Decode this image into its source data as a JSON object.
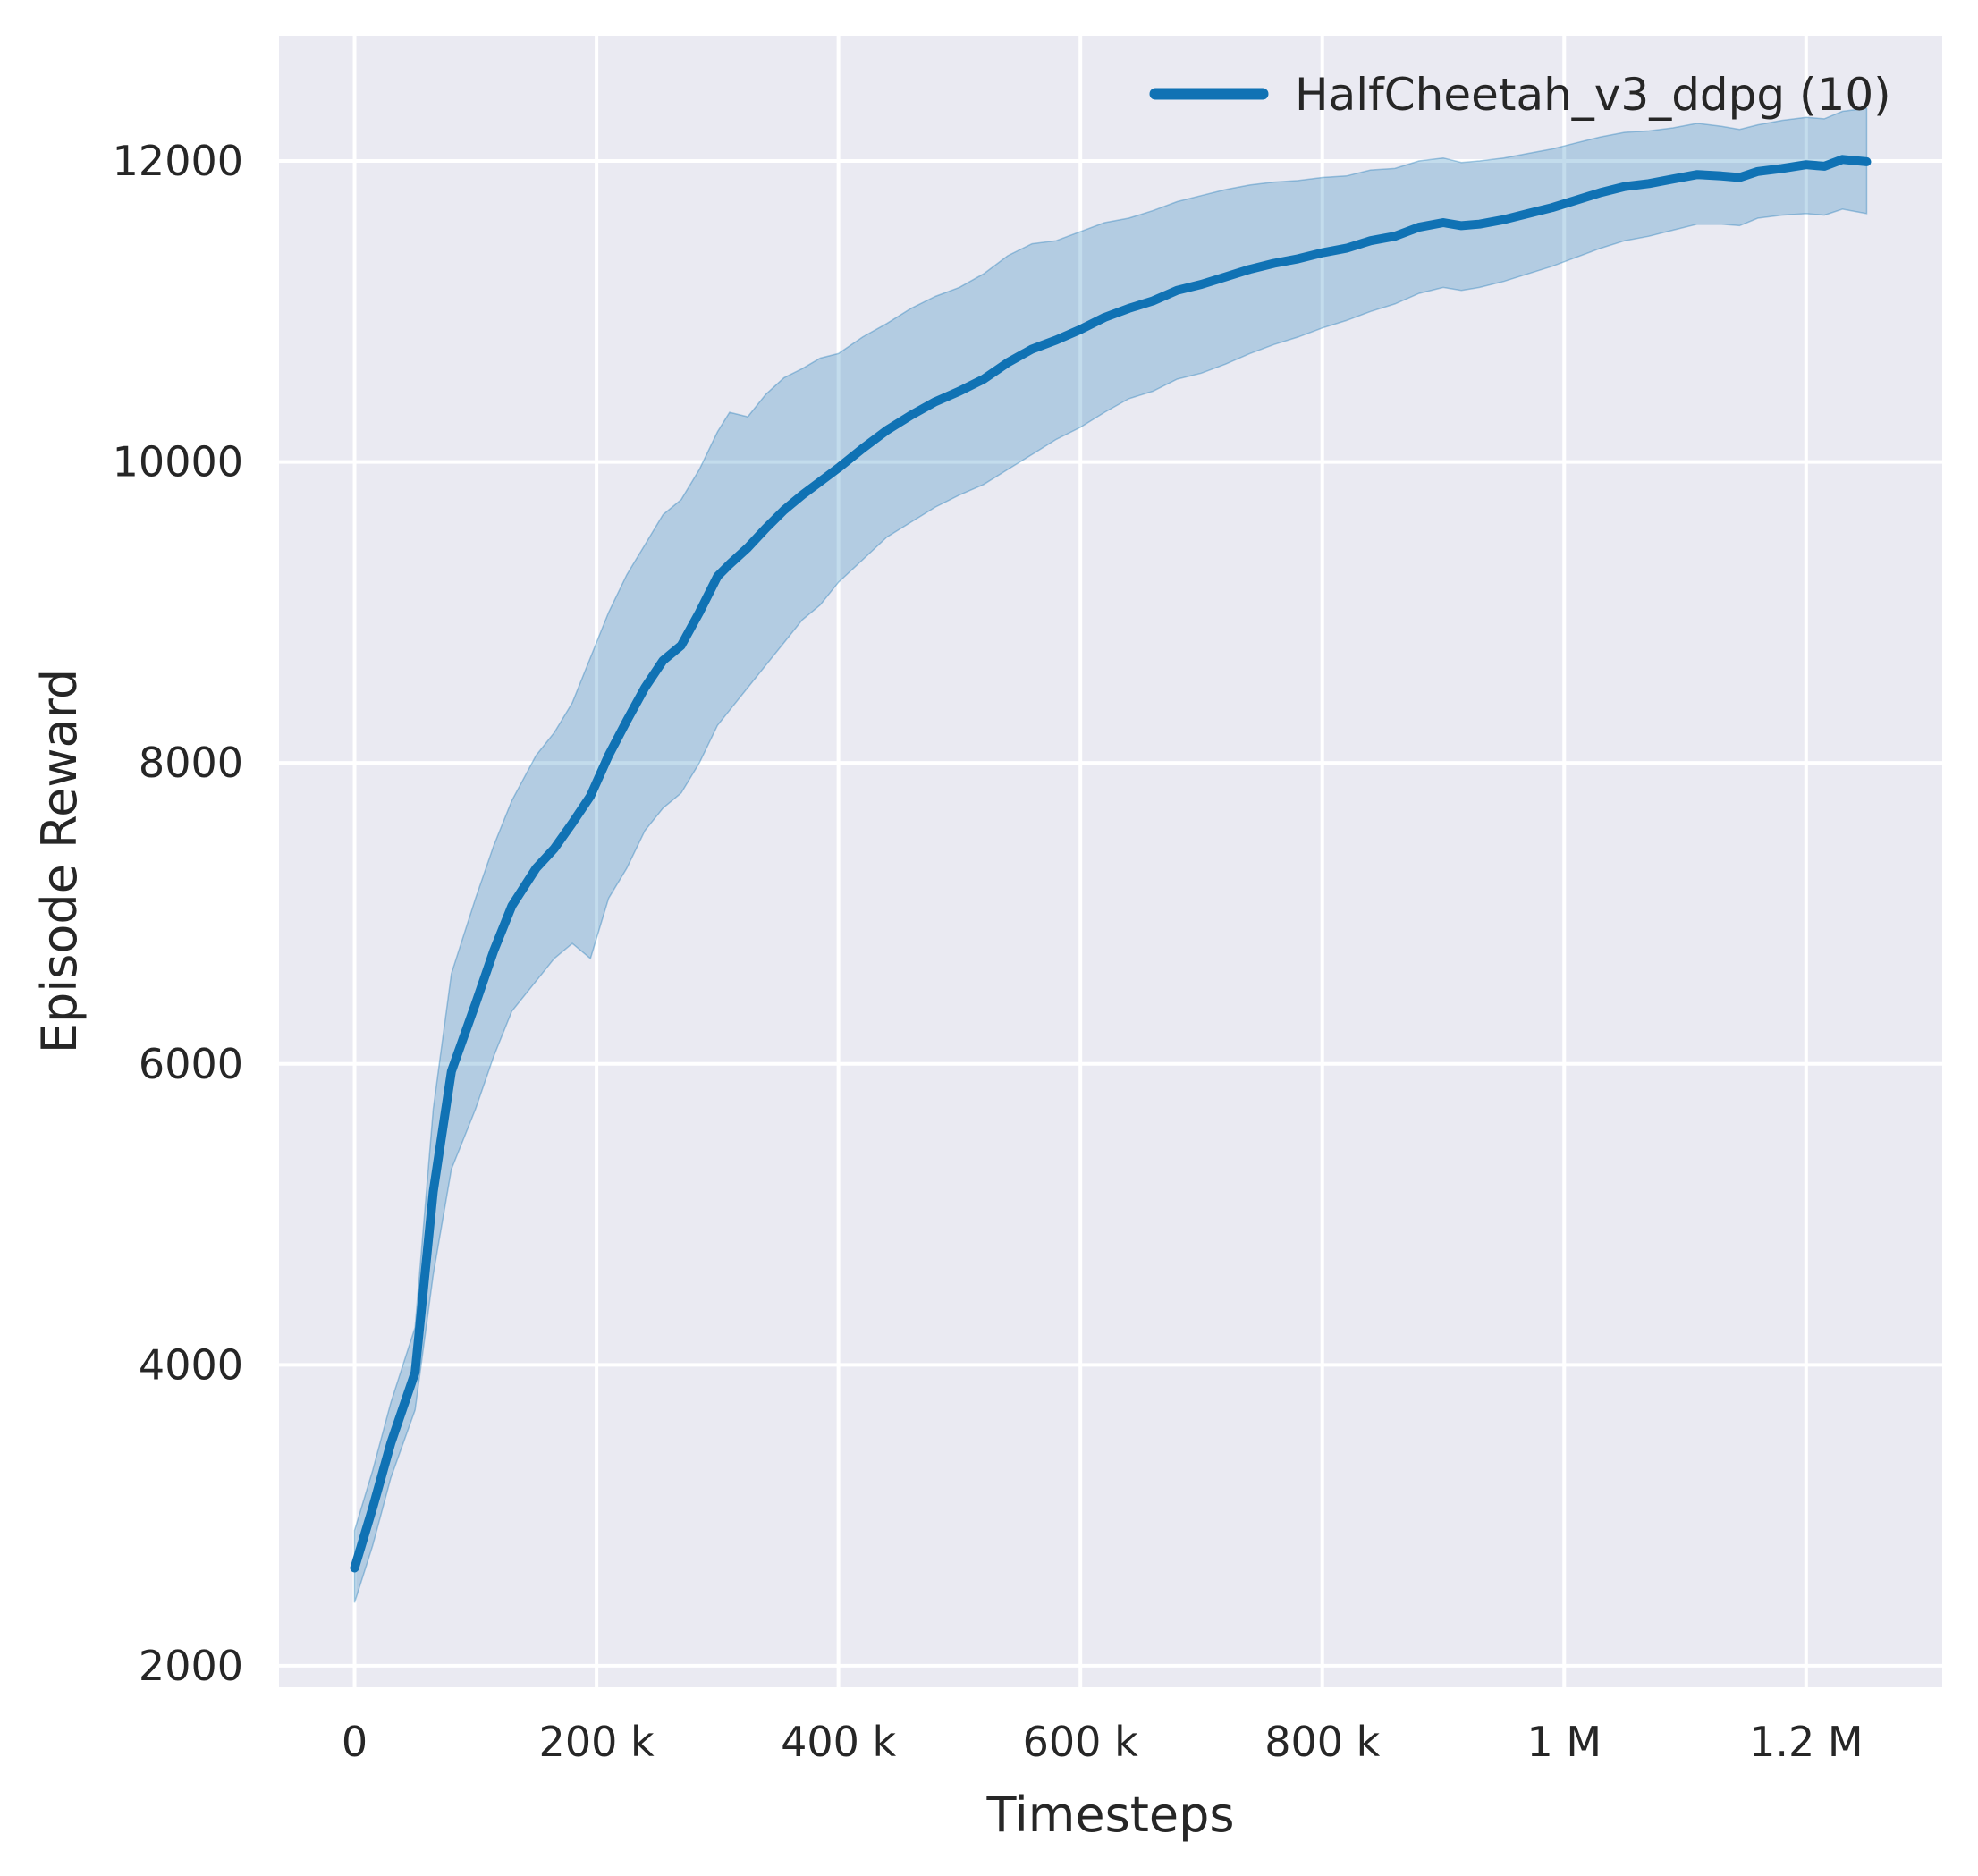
{
  "figure": {
    "background": "#ffffff",
    "plot_background": "#eaeaf2",
    "grid_color": "#ffffff",
    "text_color": "#262626"
  },
  "legend": {
    "label": "HalfCheetah_v3_ddpg (10)",
    "line_color": "#1072b4",
    "position": "upper right"
  },
  "chart_data": {
    "type": "line",
    "title": "",
    "xlabel": "Timesteps",
    "ylabel": "Episode Reward",
    "grid": true,
    "legend_position": "upper right",
    "x_unit": "timesteps (thousands)",
    "xlim_thousands": [
      -62.5,
      1312.5
    ],
    "ylim": [
      1857,
      12832
    ],
    "xticks": [
      {
        "v": 0,
        "label": "0"
      },
      {
        "v": 200,
        "label": "200 k"
      },
      {
        "v": 400,
        "label": "400 k"
      },
      {
        "v": 600,
        "label": "600 k"
      },
      {
        "v": 800,
        "label": "800 k"
      },
      {
        "v": 1000,
        "label": "1 M"
      },
      {
        "v": 1200,
        "label": "1.2 M"
      }
    ],
    "yticks": [
      {
        "v": 2000,
        "label": "2000"
      },
      {
        "v": 4000,
        "label": "4000"
      },
      {
        "v": 6000,
        "label": "6000"
      },
      {
        "v": 8000,
        "label": "8000"
      },
      {
        "v": 10000,
        "label": "10000"
      },
      {
        "v": 12000,
        "label": "12000"
      }
    ],
    "series": [
      {
        "name": "HalfCheetah_v3_ddpg (10)",
        "color": "#1072b4",
        "band_alpha": 0.25,
        "line_width": 10,
        "x_thousands": [
          0,
          15,
          30,
          50,
          65,
          80,
          100,
          115,
          130,
          150,
          165,
          180,
          195,
          210,
          225,
          240,
          255,
          270,
          285,
          300,
          310,
          325,
          340,
          355,
          370,
          385,
          400,
          420,
          440,
          460,
          480,
          500,
          520,
          540,
          560,
          580,
          600,
          620,
          640,
          660,
          680,
          700,
          720,
          740,
          760,
          780,
          800,
          820,
          840,
          860,
          880,
          900,
          915,
          930,
          950,
          970,
          990,
          1010,
          1030,
          1050,
          1070,
          1090,
          1110,
          1130,
          1145,
          1160,
          1180,
          1200,
          1215,
          1230,
          1250
        ],
        "mean": [
          2650,
          3050,
          3480,
          3950,
          5150,
          5950,
          6400,
          6750,
          7050,
          7300,
          7430,
          7600,
          7780,
          8050,
          8280,
          8500,
          8680,
          8780,
          9000,
          9240,
          9320,
          9430,
          9560,
          9680,
          9780,
          9870,
          9960,
          10090,
          10210,
          10310,
          10400,
          10470,
          10550,
          10660,
          10750,
          10810,
          10880,
          10960,
          11020,
          11070,
          11140,
          11180,
          11230,
          11280,
          11320,
          11350,
          11390,
          11420,
          11470,
          11500,
          11560,
          11590,
          11570,
          11580,
          11610,
          11650,
          11690,
          11740,
          11790,
          11830,
          11850,
          11880,
          11910,
          11900,
          11890,
          11930,
          11950,
          11975,
          11965,
          12010,
          11995
        ],
        "lower": [
          2420,
          2800,
          3250,
          3700,
          4600,
          5300,
          5700,
          6050,
          6350,
          6550,
          6700,
          6800,
          6700,
          7100,
          7300,
          7550,
          7700,
          7800,
          8000,
          8250,
          8350,
          8500,
          8650,
          8800,
          8950,
          9050,
          9200,
          9350,
          9500,
          9600,
          9700,
          9780,
          9850,
          9950,
          10050,
          10150,
          10230,
          10330,
          10420,
          10470,
          10550,
          10590,
          10650,
          10720,
          10780,
          10830,
          10890,
          10940,
          11000,
          11050,
          11120,
          11160,
          11140,
          11160,
          11200,
          11250,
          11300,
          11360,
          11420,
          11470,
          11500,
          11540,
          11580,
          11580,
          11570,
          11620,
          11640,
          11650,
          11640,
          11680,
          11650
        ],
        "upper": [
          2900,
          3300,
          3750,
          4250,
          5700,
          6600,
          7100,
          7450,
          7750,
          8050,
          8200,
          8400,
          8700,
          9000,
          9250,
          9450,
          9650,
          9750,
          9950,
          10200,
          10330,
          10300,
          10450,
          10560,
          10620,
          10690,
          10720,
          10830,
          10920,
          11020,
          11100,
          11160,
          11250,
          11370,
          11450,
          11470,
          11530,
          11590,
          11620,
          11670,
          11730,
          11770,
          11810,
          11840,
          11860,
          11870,
          11890,
          11900,
          11940,
          11950,
          12000,
          12020,
          11990,
          12000,
          12020,
          12050,
          12080,
          12120,
          12160,
          12190,
          12200,
          12220,
          12250,
          12230,
          12210,
          12240,
          12270,
          12290,
          12280,
          12330,
          12350
        ]
      }
    ]
  }
}
